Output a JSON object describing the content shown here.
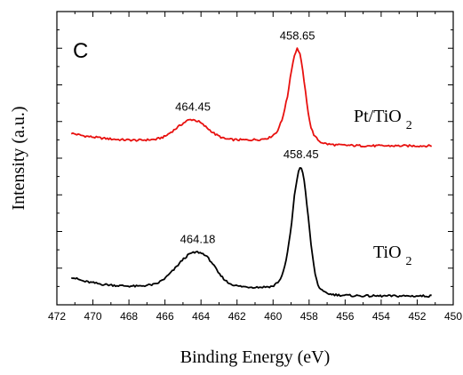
{
  "chart_data": {
    "type": "line",
    "panel_label": "C",
    "xlabel": "Binding Energy (eV)",
    "ylabel": "Intensity (a.u.)",
    "xlim": [
      472,
      450
    ],
    "x_reversed": true,
    "xticks": [
      472,
      470,
      468,
      466,
      464,
      462,
      460,
      458,
      456,
      454,
      452,
      450
    ],
    "ylim": [
      0,
      100
    ],
    "y_tick_labels_shown": false,
    "grid": false,
    "series": [
      {
        "name": "Pt/TiO2",
        "label_main": "Pt/TiO",
        "label_sub": "2",
        "color": "#e8110f",
        "peaks": [
          {
            "x": 464.45,
            "label": "464.45"
          },
          {
            "x": 458.65,
            "label": "458.65"
          }
        ],
        "x": [
          471.2,
          470.5,
          469.5,
          468.5,
          467.5,
          466.5,
          466.0,
          465.5,
          465.0,
          464.7,
          464.45,
          464.1,
          463.7,
          463.2,
          462.7,
          462.2,
          461.5,
          460.7,
          460.2,
          459.8,
          459.5,
          459.2,
          459.0,
          458.8,
          458.65,
          458.5,
          458.3,
          458.1,
          457.9,
          457.7,
          457.4,
          457.0,
          456.5,
          455.5,
          454.5,
          453.5,
          452.5,
          451.2
        ],
        "y": [
          58.5,
          57.6,
          56.8,
          56.3,
          56.1,
          56.4,
          57.4,
          59.6,
          61.9,
          63.0,
          63.2,
          62.4,
          60.5,
          58.1,
          56.6,
          56.3,
          56.2,
          56.4,
          57.0,
          58.8,
          63.0,
          71.0,
          79.5,
          85.5,
          87.5,
          85.5,
          77.5,
          67.5,
          60.5,
          57.5,
          55.6,
          54.8,
          54.5,
          54.3,
          54.2,
          54.2,
          54.2,
          54.2
        ]
      },
      {
        "name": "TiO2",
        "label_main": "TiO",
        "label_sub": "2",
        "color": "#000000",
        "peaks": [
          {
            "x": 464.18,
            "label": "464.18"
          },
          {
            "x": 458.45,
            "label": "458.45"
          }
        ],
        "x": [
          471.2,
          470.5,
          469.5,
          468.5,
          467.5,
          466.5,
          466.0,
          465.5,
          465.0,
          464.6,
          464.18,
          463.8,
          463.4,
          463.0,
          462.5,
          462.0,
          461.5,
          460.7,
          460.0,
          459.6,
          459.3,
          459.0,
          458.8,
          458.6,
          458.45,
          458.3,
          458.1,
          457.9,
          457.7,
          457.5,
          457.2,
          456.8,
          456.3,
          455.5,
          454.5,
          453.5,
          452.5,
          451.2
        ],
        "y": [
          9.5,
          8.0,
          7.0,
          6.5,
          6.3,
          7.0,
          9.0,
          12.0,
          15.5,
          17.5,
          18.0,
          17.2,
          14.5,
          10.5,
          7.5,
          6.4,
          6.1,
          6.0,
          6.3,
          8.5,
          14.0,
          26.0,
          38.0,
          45.5,
          47.0,
          44.0,
          33.0,
          21.0,
          11.5,
          6.5,
          4.3,
          3.6,
          3.3,
          3.1,
          3.0,
          3.0,
          3.0,
          3.0
        ]
      }
    ]
  }
}
